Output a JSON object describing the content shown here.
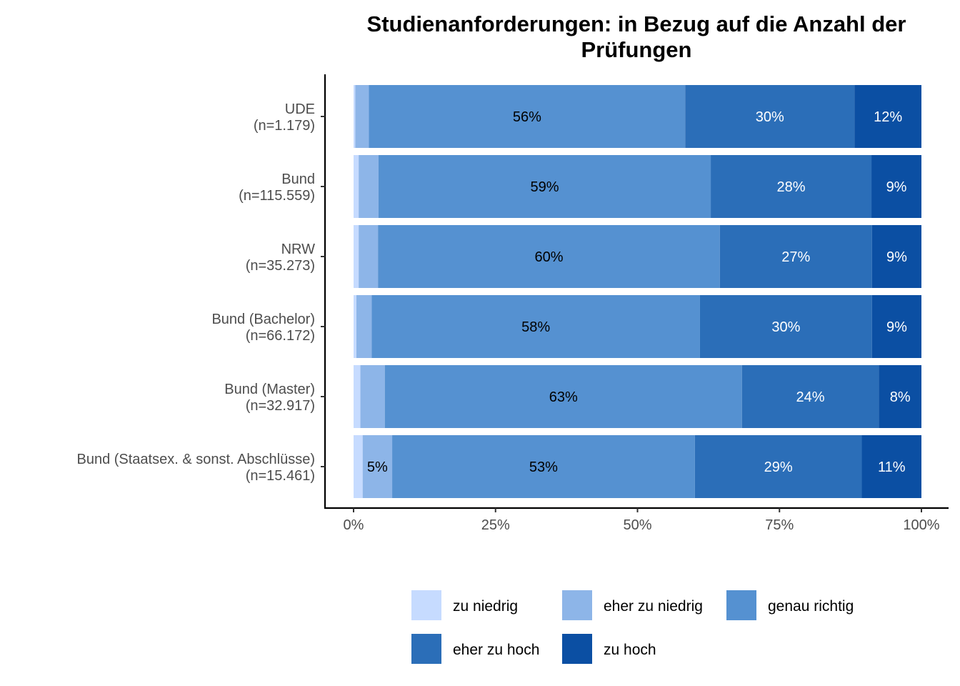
{
  "chart_data": {
    "type": "bar",
    "orientation": "horizontal",
    "stacked": "percent",
    "title": "Studienanforderungen: in Bezug auf die Anzahl der\nPrüfungen",
    "xlabel": "",
    "ylabel": "",
    "xlim": [
      0,
      100
    ],
    "x_ticks": [
      "0%",
      "25%",
      "50%",
      "75%",
      "100%"
    ],
    "grid": false,
    "legend_position": "bottom",
    "categories": [
      "UDE\n(n=1.179)",
      "Bund\n(n=115.559)",
      "NRW\n(n=35.273)",
      "Bund (Bachelor)\n(n=66.172)",
      "Bund (Master)\n(n=32.917)",
      "Bund (Staatsex. & sonst. Abschlüsse)\n(n=15.461)"
    ],
    "series": [
      {
        "name": "zu niedrig",
        "color": "#c6dbff",
        "label_color": "#000000",
        "values": [
          0.3,
          0.9,
          0.9,
          0.5,
          1.2,
          1.6
        ],
        "labels": [
          "",
          "",
          "",
          "",
          "",
          ""
        ]
      },
      {
        "name": "eher zu niedrig",
        "color": "#8db5e8",
        "label_color": "#000000",
        "values": [
          2.4,
          3.5,
          3.4,
          2.7,
          4.3,
          5.2
        ],
        "labels": [
          "",
          "",
          "",
          "",
          "",
          "5%"
        ]
      },
      {
        "name": "genau richtig",
        "color": "#5591d1",
        "label_color": "#000000",
        "values": [
          55.7,
          58.5,
          60.2,
          57.8,
          62.9,
          53.3
        ],
        "labels": [
          "56%",
          "59%",
          "60%",
          "58%",
          "63%",
          "53%"
        ]
      },
      {
        "name": "eher zu hoch",
        "color": "#2b6eb8",
        "label_color": "#ffffff",
        "values": [
          29.8,
          28.3,
          26.8,
          30.3,
          24.1,
          29.4
        ],
        "labels": [
          "30%",
          "28%",
          "27%",
          "30%",
          "24%",
          "29%"
        ]
      },
      {
        "name": "zu hoch",
        "color": "#0b4fa3",
        "label_color": "#ffffff",
        "values": [
          11.8,
          8.8,
          8.7,
          8.7,
          7.5,
          10.5
        ],
        "labels": [
          "12%",
          "9%",
          "9%",
          "9%",
          "8%",
          "11%"
        ]
      }
    ]
  }
}
